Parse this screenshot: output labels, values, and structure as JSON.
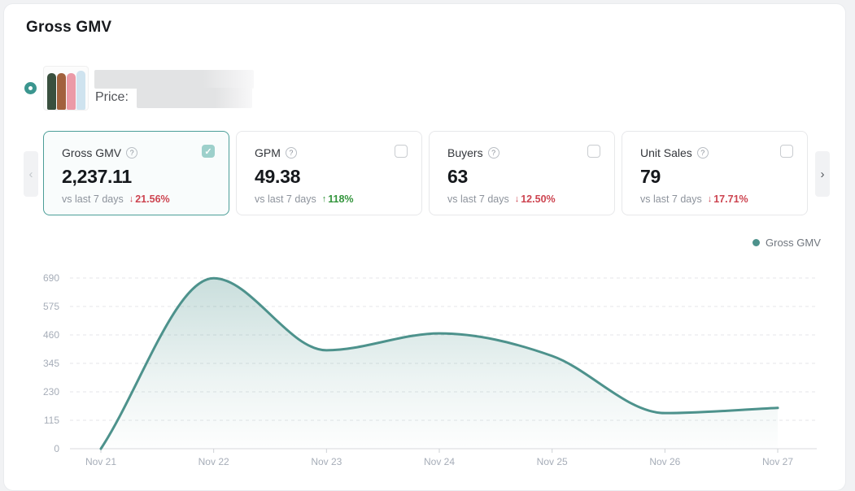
{
  "page": {
    "title": "Gross GMV"
  },
  "product": {
    "price_label": "Price:"
  },
  "icons": {
    "up_arrow": "↑",
    "down_arrow": "↓",
    "check": "✓",
    "help": "?",
    "chevron_left": "‹",
    "chevron_right": "›"
  },
  "colors": {
    "accent_teal": "#3b968f",
    "line_teal": "#4d928c",
    "up_green": "#33953c",
    "down_red": "#cd4450",
    "selected_card_border": "#4c9e98"
  },
  "metric_cards": [
    {
      "label": "Gross GMV",
      "value": "2,237.11",
      "compare_label": "vs last 7 days",
      "delta": "21.56%",
      "trend": "down",
      "checked": true
    },
    {
      "label": "GPM",
      "value": "49.38",
      "compare_label": "vs last 7 days",
      "delta": "118%",
      "trend": "up",
      "checked": false
    },
    {
      "label": "Buyers",
      "value": "63",
      "compare_label": "vs last 7 days",
      "delta": "12.50%",
      "trend": "down",
      "checked": false
    },
    {
      "label": "Unit Sales",
      "value": "79",
      "compare_label": "vs last 7 days",
      "delta": "17.71%",
      "trend": "down",
      "checked": false
    }
  ],
  "legend": {
    "label": "Gross GMV"
  },
  "chart_data": {
    "type": "area",
    "title": "Gross GMV daily trend",
    "categories": [
      "Nov 21",
      "Nov 22",
      "Nov 23",
      "Nov 24",
      "Nov 25",
      "Nov 26",
      "Nov 27"
    ],
    "series": [
      {
        "name": "Gross GMV",
        "color": "#4d928c",
        "values": [
          0,
          689,
          398,
          466,
          375,
          144,
          165
        ]
      }
    ],
    "y_ticks": [
      0,
      115,
      230,
      345,
      460,
      575,
      690
    ],
    "ylim": [
      0,
      690
    ],
    "xlabel": "",
    "ylabel": "",
    "grid": "horizontal-dashed",
    "legend_position": "top-right"
  }
}
